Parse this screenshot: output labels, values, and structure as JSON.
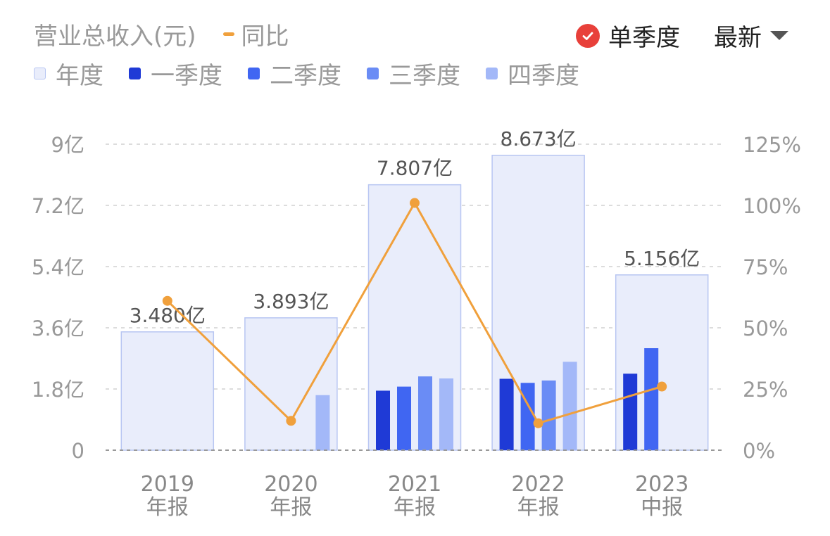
{
  "header": {
    "title": "营业总收入(元)",
    "yoy_label": "同比",
    "yoy_color": "#f0a03c",
    "single_quarter_label": "单季度",
    "single_quarter_checked": true,
    "single_quarter_icon": "check-circle-icon",
    "check_color": "#e8403a",
    "sort_label": "最新",
    "sort_icon": "triangle-down-icon"
  },
  "legend": [
    {
      "label": "年度",
      "color": "#e9edfb",
      "border": "#b8c6f2"
    },
    {
      "label": "一季度",
      "color": "#1f3ad6"
    },
    {
      "label": "二季度",
      "color": "#4066f2"
    },
    {
      "label": "三季度",
      "color": "#6a8cf5"
    },
    {
      "label": "四季度",
      "color": "#a3b8f8"
    }
  ],
  "chart_data": {
    "type": "bar",
    "categories": [
      "2019\n年报",
      "2020\n年报",
      "2021\n年报",
      "2022\n年报",
      "2023\n中报"
    ],
    "annual": {
      "name": "年度",
      "values": [
        3.48,
        3.893,
        7.807,
        8.673,
        5.156
      ],
      "labels": [
        "3.480亿",
        "3.893亿",
        "7.807亿",
        "8.673亿",
        "5.156亿"
      ]
    },
    "quarters": [
      {
        "name": "一季度",
        "values": [
          null,
          null,
          1.75,
          2.1,
          2.25
        ]
      },
      {
        "name": "二季度",
        "values": [
          null,
          null,
          1.87,
          1.98,
          3.0
        ]
      },
      {
        "name": "三季度",
        "values": [
          null,
          null,
          2.17,
          2.05,
          null
        ]
      },
      {
        "name": "四季度",
        "values": [
          null,
          1.62,
          2.11,
          2.6,
          null
        ]
      }
    ],
    "yoy": {
      "name": "同比",
      "unit": "%",
      "values": [
        61,
        12,
        101,
        11,
        26
      ]
    },
    "y_left": {
      "ticks": [
        "0",
        "1.8亿",
        "3.6亿",
        "5.4亿",
        "7.2亿",
        "9亿"
      ],
      "lim": [
        0,
        9
      ],
      "unit": "亿"
    },
    "y_right": {
      "ticks": [
        "0%",
        "25%",
        "50%",
        "75%",
        "100%",
        "125%"
      ],
      "lim": [
        0,
        125
      ]
    },
    "grid": true
  }
}
